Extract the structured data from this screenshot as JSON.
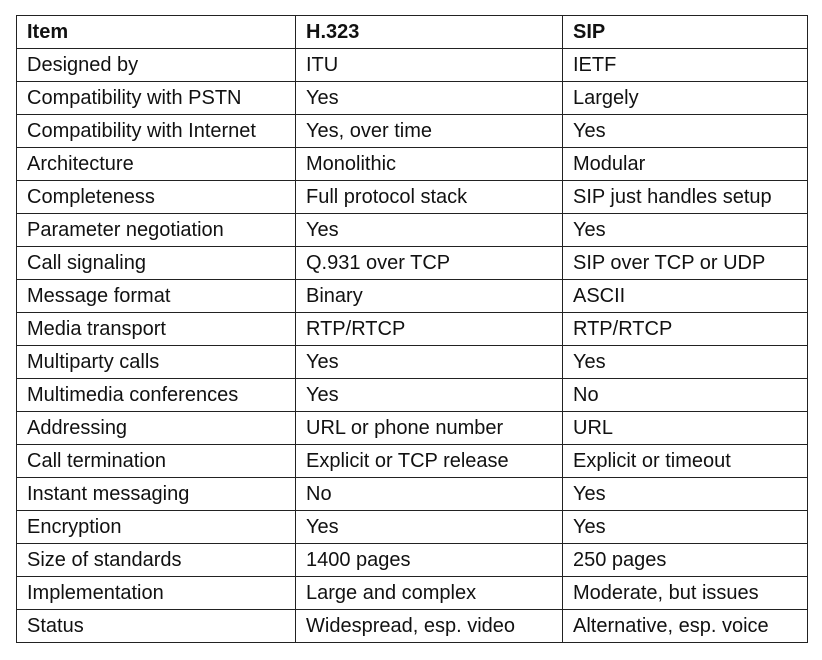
{
  "table": {
    "headers": [
      "Item",
      "H.323",
      "SIP"
    ],
    "rows": [
      [
        "Designed by",
        "ITU",
        "IETF"
      ],
      [
        "Compatibility with PSTN",
        "Yes",
        "Largely"
      ],
      [
        "Compatibility with Internet",
        "Yes, over time",
        "Yes"
      ],
      [
        "Architecture",
        "Monolithic",
        "Modular"
      ],
      [
        "Completeness",
        "Full protocol stack",
        "SIP just handles setup"
      ],
      [
        "Parameter negotiation",
        "Yes",
        "Yes"
      ],
      [
        "Call signaling",
        "Q.931 over TCP",
        "SIP over TCP or UDP"
      ],
      [
        "Message format",
        "Binary",
        "ASCII"
      ],
      [
        "Media transport",
        "RTP/RTCP",
        "RTP/RTCP"
      ],
      [
        "Multiparty calls",
        "Yes",
        "Yes"
      ],
      [
        "Multimedia conferences",
        "Yes",
        "No"
      ],
      [
        "Addressing",
        "URL or phone number",
        "URL"
      ],
      [
        "Call termination",
        "Explicit or TCP release",
        "Explicit or timeout"
      ],
      [
        "Instant messaging",
        "No",
        "Yes"
      ],
      [
        "Encryption",
        "Yes",
        "Yes"
      ],
      [
        "Size of standards",
        "1400 pages",
        "250 pages"
      ],
      [
        "Implementation",
        "Large and complex",
        "Moderate, but issues"
      ],
      [
        "Status",
        "Widespread, esp. video",
        "Alternative, esp. voice"
      ]
    ]
  }
}
